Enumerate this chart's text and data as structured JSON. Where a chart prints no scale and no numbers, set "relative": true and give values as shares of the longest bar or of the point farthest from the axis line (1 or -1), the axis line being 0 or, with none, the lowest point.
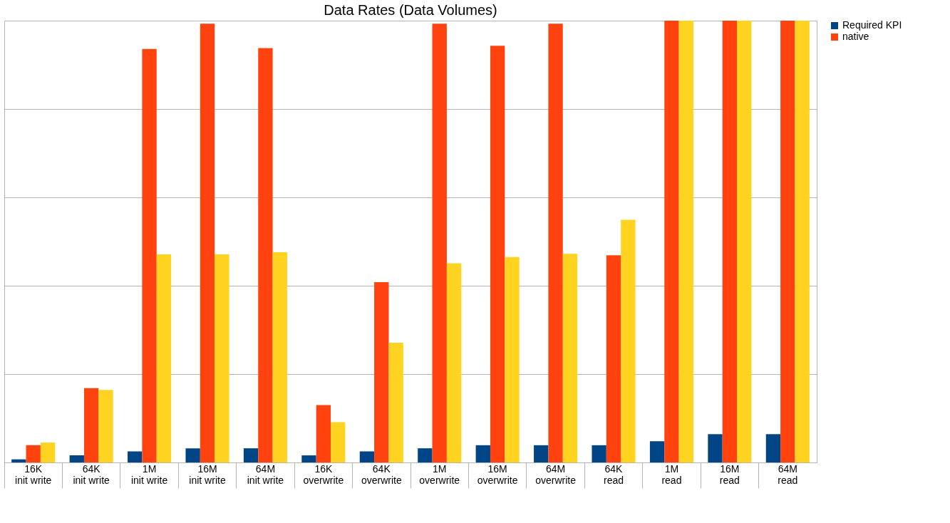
{
  "chart_data": {
    "type": "bar",
    "title": "Data Rates (Data Volumes)",
    "relative": true,
    "grid": "y",
    "legend": "right",
    "categories": [
      "16K init write",
      "64K init write",
      "1M init write",
      "16M init write",
      "64M init write",
      "16K overwrite",
      "64K overwrite",
      "1M overwrite",
      "16M overwrite",
      "64M overwrite",
      "64K read",
      "1M read",
      "16M read",
      "64M read"
    ],
    "series": [
      {
        "name": "Required KPI",
        "color": "#004586",
        "values": [
          0.007,
          0.016,
          0.025,
          0.032,
          0.032,
          0.016,
          0.025,
          0.032,
          0.039,
          0.039,
          0.039,
          0.048,
          0.064,
          0.064
        ]
      },
      {
        "name": "native",
        "color": "#ff420e",
        "values": [
          0.039,
          0.168,
          0.936,
          0.993,
          0.938,
          0.13,
          0.408,
          0.993,
          0.943,
          0.993,
          0.469,
          1,
          1,
          1
        ]
      },
      {
        "color": "#ffd320",
        "values": [
          0.045,
          0.164,
          0.471,
          0.471,
          0.476,
          0.091,
          0.271,
          0.451,
          0.465,
          0.472,
          0.549,
          1,
          1,
          1
        ]
      }
    ]
  }
}
